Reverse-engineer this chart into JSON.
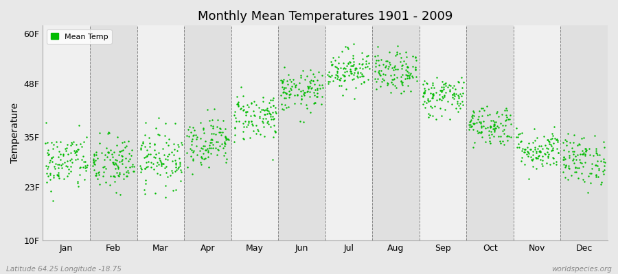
{
  "title": "Monthly Mean Temperatures 1901 - 2009",
  "ylabel": "Temperature",
  "yticks": [
    10,
    23,
    35,
    48,
    60
  ],
  "ytick_labels": [
    "10F",
    "23F",
    "35F",
    "48F",
    "60F"
  ],
  "months": [
    "Jan",
    "Feb",
    "Mar",
    "Apr",
    "May",
    "Jun",
    "Jul",
    "Aug",
    "Sep",
    "Oct",
    "Nov",
    "Dec"
  ],
  "dot_color": "#00bb00",
  "bg_color": "#e8e8e8",
  "stripe_light": "#f0f0f0",
  "stripe_dark": "#e0e0e0",
  "legend_label": "Mean Temp",
  "bottom_left": "Latitude 64.25 Longitude -18.75",
  "bottom_right": "worldspecies.org",
  "n_years": 109,
  "mean_temps_F": [
    29.0,
    28.5,
    30.0,
    34.0,
    40.0,
    46.0,
    51.5,
    50.5,
    45.0,
    38.0,
    32.0,
    29.5
  ],
  "std_temps_F": [
    3.5,
    3.5,
    3.5,
    3.0,
    3.0,
    2.5,
    2.5,
    2.5,
    2.5,
    2.5,
    2.5,
    3.0
  ],
  "ylim": [
    10,
    62
  ],
  "xlim": [
    0,
    12
  ],
  "figsize": [
    9.0,
    4.0
  ],
  "dpi": 100
}
